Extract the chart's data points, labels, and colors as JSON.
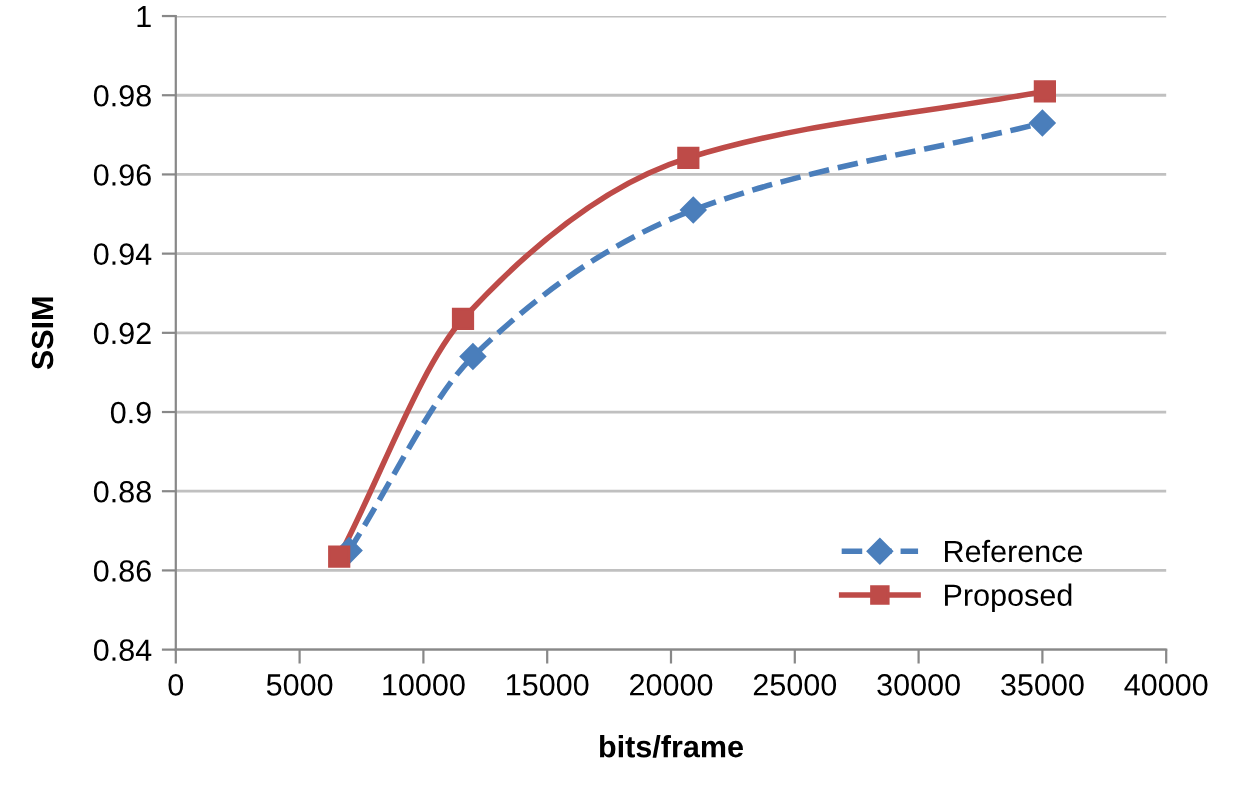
{
  "chart_data": {
    "type": "line",
    "xlabel": "bits/frame",
    "ylabel": "SSIM",
    "series": [
      {
        "name": "Reference",
        "color": "#4a7ebb",
        "x": [
          7000,
          12000,
          20900,
          35000
        ],
        "values": [
          0.865,
          0.914,
          0.951,
          0.973
        ],
        "marker": "diamond",
        "line_style": "dashed"
      },
      {
        "name": "Proposed",
        "color": "#be4b48",
        "x": [
          6600,
          11600,
          20700,
          35100
        ],
        "values": [
          0.8635,
          0.9235,
          0.9642,
          0.981
        ],
        "marker": "square",
        "line_style": "solid"
      }
    ],
    "xlim": [
      0,
      40000
    ],
    "xticks": [
      0,
      5000,
      10000,
      15000,
      20000,
      25000,
      30000,
      35000,
      40000
    ],
    "ylim": [
      0.84,
      1
    ],
    "yticks": [
      0.84,
      0.86,
      0.88,
      0.9,
      0.92,
      0.94,
      0.96,
      0.98,
      1
    ],
    "grid": "y",
    "legend": "bottom right"
  }
}
